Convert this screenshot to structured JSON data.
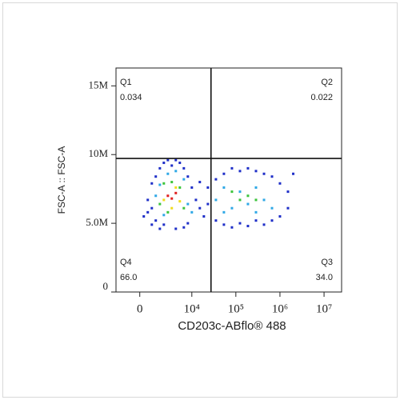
{
  "chart_data": {
    "type": "scatter",
    "xlabel": "CD203c-ABflo® 488",
    "ylabel": "FSC-A :: FSC-A",
    "xscale": "biexponential",
    "xlim": [
      -2100,
      25000000
    ],
    "ylim": [
      0,
      16300000
    ],
    "xticks": [
      0,
      {
        "value": 10000,
        "label": "10⁴"
      },
      {
        "value": 100000,
        "label": "10⁵"
      },
      {
        "value": 1000000,
        "label": "10⁶"
      },
      {
        "value": 10000000,
        "label": "10⁷"
      }
    ],
    "yticks": [
      0,
      {
        "value": 5000000,
        "label": "5.0M"
      },
      {
        "value": 10000000,
        "label": "10M"
      },
      {
        "value": 15000000,
        "label": "15M"
      }
    ],
    "gates": {
      "x": 27300,
      "y": 9720000
    },
    "quadrants": {
      "names": [
        "Q1",
        "Q2",
        "Q3",
        "Q4"
      ],
      "values": [
        0.034,
        0.022,
        34,
        66
      ],
      "value_labels": [
        "0.034",
        "0.022",
        "34.0",
        "66.0"
      ]
    },
    "series": [
      {
        "color": "#1f2fc8",
        "x": [
          280,
          570,
          890,
          890,
          1240,
          1240,
          1660,
          1660,
          2140,
          2140,
          2720,
          3400,
          4250,
          5280,
          6550,
          8100,
          10000,
          12400,
          15200,
          18800,
          8100,
          6550,
          4250,
          23200,
          23200,
          35300,
          35300,
          53600,
          53600,
          81500,
          81500,
          124000,
          124000,
          188000,
          188000,
          286000,
          286000,
          435000,
          435000,
          660000,
          660000,
          1000000,
          1000000,
          1520000,
          1520000,
          2000000,
          15200,
          890,
          570
        ],
        "values": [
          5500000,
          6700000,
          7900000,
          4900000,
          8400000,
          5200000,
          9000000,
          4600000,
          9400000,
          4900000,
          9600000,
          9200000,
          9600000,
          9400000,
          9000000,
          8400000,
          7600000,
          6700000,
          6100000,
          5500000,
          5000000,
          4700000,
          4600000,
          6400000,
          7600000,
          5200000,
          8200000,
          8600000,
          4900000,
          9000000,
          4700000,
          8800000,
          5000000,
          9000000,
          4800000,
          8800000,
          5200000,
          8600000,
          4900000,
          8400000,
          5200000,
          7900000,
          5500000,
          7300000,
          6100000,
          8600000,
          8000000,
          6100000,
          5800000
        ]
      },
      {
        "color": "#2fa8e6",
        "x": [
          1240,
          1660,
          2140,
          2720,
          4250,
          6550,
          8100,
          10000,
          35300,
          53600,
          81500,
          124000,
          188000,
          286000,
          435000,
          660000,
          53600,
          286000
        ],
        "values": [
          7000000,
          7800000,
          5600000,
          8600000,
          8800000,
          8200000,
          6400000,
          5800000,
          6700000,
          7600000,
          6100000,
          7300000,
          6400000,
          7600000,
          6700000,
          6100000,
          5800000,
          5800000
        ]
      },
      {
        "color": "#3cc43c",
        "x": [
          1660,
          2140,
          2720,
          3400,
          5280,
          6550,
          124000,
          188000,
          286000,
          81500
        ],
        "values": [
          6400000,
          7900000,
          5800000,
          8000000,
          7600000,
          6100000,
          6700000,
          7000000,
          6700000,
          7300000
        ]
      },
      {
        "color": "#f0dc1e",
        "x": [
          2140,
          3400,
          4250,
          5280
        ],
        "values": [
          6700000,
          6100000,
          7600000,
          6600000
        ]
      },
      {
        "color": "#e02020",
        "x": [
          2720,
          3400,
          4250
        ],
        "values": [
          7000000,
          6800000,
          7200000
        ]
      }
    ]
  }
}
